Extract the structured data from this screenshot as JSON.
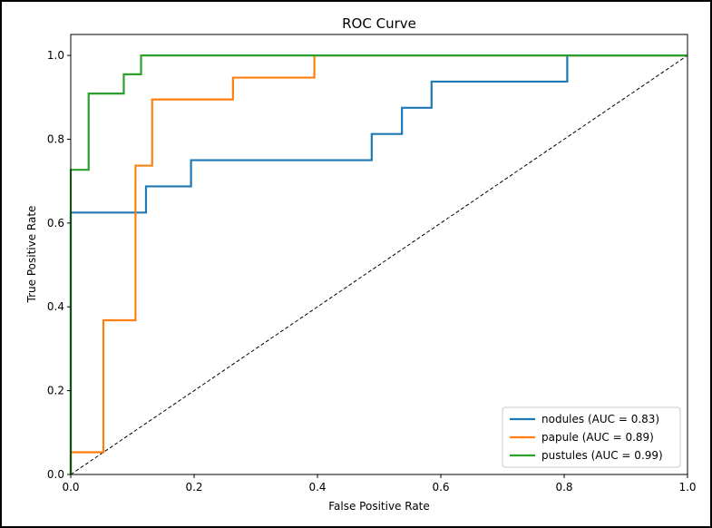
{
  "chart_data": {
    "type": "line",
    "title": "ROC Curve",
    "xlabel": "False Positive Rate",
    "ylabel": "True Positive Rate",
    "xlim": [
      0.0,
      1.0
    ],
    "ylim": [
      0.0,
      1.05
    ],
    "xticks": [
      "0.0",
      "0.2",
      "0.4",
      "0.6",
      "0.8",
      "1.0"
    ],
    "yticks": [
      "0.0",
      "0.2",
      "0.4",
      "0.6",
      "0.8",
      "1.0"
    ],
    "grid": false,
    "legend_position": "lower-right",
    "series": [
      {
        "name": "nodules (AUC = 0.83)",
        "color": "#1f77b4",
        "x": [
          0.0,
          0.0,
          0.122,
          0.122,
          0.195,
          0.195,
          0.488,
          0.488,
          0.537,
          0.537,
          0.585,
          0.585,
          0.805,
          0.805,
          1.0
        ],
        "y": [
          0.0,
          0.625,
          0.625,
          0.6875,
          0.6875,
          0.75,
          0.75,
          0.8125,
          0.8125,
          0.875,
          0.875,
          0.9375,
          0.9375,
          1.0,
          1.0
        ]
      },
      {
        "name": "papule (AUC = 0.89)",
        "color": "#ff7f0e",
        "x": [
          0.0,
          0.0,
          0.053,
          0.053,
          0.105,
          0.105,
          0.132,
          0.132,
          0.263,
          0.263,
          0.395,
          0.395,
          1.0
        ],
        "y": [
          0.0,
          0.053,
          0.053,
          0.368,
          0.368,
          0.737,
          0.737,
          0.895,
          0.895,
          0.947,
          0.947,
          1.0,
          1.0
        ]
      },
      {
        "name": "pustules (AUC = 0.99)",
        "color": "#2ca02c",
        "x": [
          0.0,
          0.0,
          0.029,
          0.029,
          0.086,
          0.086,
          0.114,
          0.114,
          1.0
        ],
        "y": [
          0.0,
          0.727,
          0.727,
          0.909,
          0.909,
          0.955,
          0.955,
          1.0,
          1.0
        ]
      }
    ],
    "reference_line": {
      "x": [
        0.0,
        1.0
      ],
      "y": [
        0.0,
        1.0
      ],
      "color": "#000000",
      "style": "dashed"
    }
  }
}
